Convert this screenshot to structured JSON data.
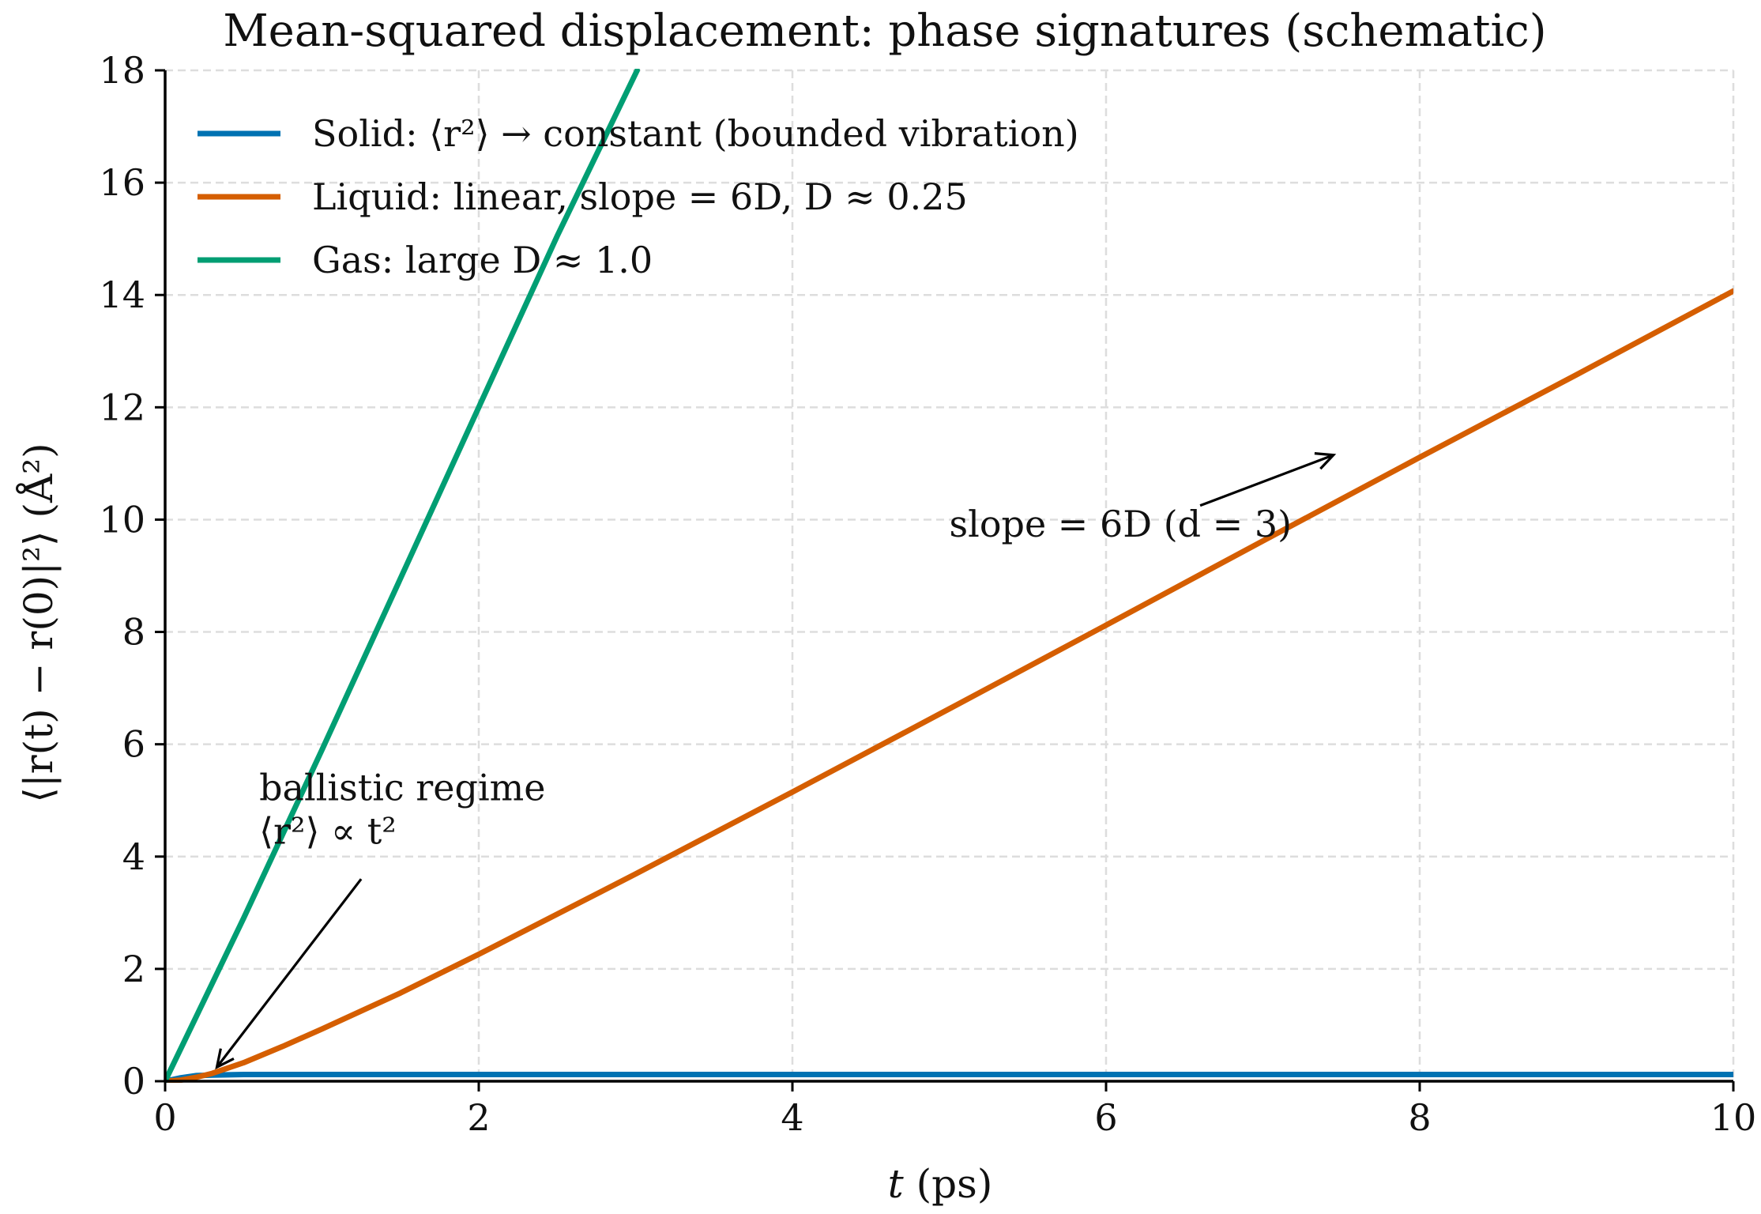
{
  "colors": {
    "solid": "#0072B2",
    "liquid": "#D55E00",
    "gas": "#009E73",
    "grid": "#dddddd",
    "axis": "#000000",
    "text": "#111111"
  },
  "chart_data": {
    "type": "line",
    "title": "Mean-squared displacement: phase signatures (schematic)",
    "xlabel": {
      "var": "t",
      "unit": " (ps)"
    },
    "ylabel": "⟨|r(t) − r(0)|²⟩ (Å²)",
    "xlim": [
      0,
      10
    ],
    "ylim": [
      0,
      18
    ],
    "x_ticks": [
      0,
      2,
      4,
      6,
      8,
      10
    ],
    "y_ticks": [
      0,
      2,
      4,
      6,
      8,
      10,
      12,
      14,
      16,
      18
    ],
    "grid": true,
    "legend_position": "upper-left",
    "series": [
      {
        "name": "Solid: ⟨r²⟩ → constant (bounded vibration)",
        "color_key": "solid",
        "x": [
          0,
          0.1,
          0.2,
          0.3,
          0.5,
          1,
          2,
          3,
          4,
          5,
          6,
          7,
          8,
          9,
          10
        ],
        "y": [
          0,
          0.06,
          0.1,
          0.11,
          0.12,
          0.12,
          0.12,
          0.12,
          0.12,
          0.12,
          0.12,
          0.12,
          0.12,
          0.12,
          0.12
        ]
      },
      {
        "name": "Liquid: linear, slope = 6D, D ≈ 0.25",
        "color_key": "liquid",
        "x": [
          0,
          0.1,
          0.2,
          0.3,
          0.5,
          0.75,
          1,
          1.5,
          2,
          3,
          4,
          5,
          6,
          7,
          8,
          9,
          10
        ],
        "y": [
          0,
          0.02,
          0.07,
          0.14,
          0.33,
          0.62,
          0.93,
          1.57,
          2.26,
          3.69,
          5.15,
          6.63,
          8.12,
          9.62,
          11.11,
          12.58,
          14.07
        ]
      },
      {
        "name": "Gas: large D ≈ 1.0",
        "color_key": "gas",
        "x": [
          0,
          0.5,
          1,
          1.5,
          2,
          2.5,
          3.01
        ],
        "y": [
          0,
          2.9,
          5.9,
          8.95,
          12,
          15.05,
          18
        ]
      }
    ],
    "annotations": [
      {
        "text_lines": [
          "slope = 6D  (d = 3)"
        ],
        "text_at": [
          5,
          9.7
        ],
        "arrow_from": [
          6.6,
          10.25
        ],
        "arrow_to": [
          7.45,
          11.15
        ]
      },
      {
        "text_lines": [
          "ballistic regime",
          "⟨r²⟩ ∝ t²"
        ],
        "text_at": [
          0.6,
          5.0
        ],
        "arrow_from": [
          1.25,
          3.6
        ],
        "arrow_to": [
          0.33,
          0.25
        ]
      }
    ]
  }
}
